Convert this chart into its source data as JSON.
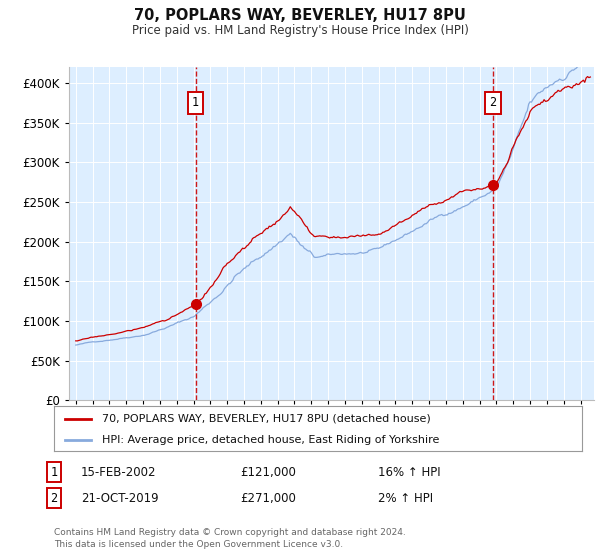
{
  "title": "70, POPLARS WAY, BEVERLEY, HU17 8PU",
  "subtitle": "Price paid vs. HM Land Registry's House Price Index (HPI)",
  "legend_line1": "70, POPLARS WAY, BEVERLEY, HU17 8PU (detached house)",
  "legend_line2": "HPI: Average price, detached house, East Riding of Yorkshire",
  "annotation1_date": "15-FEB-2002",
  "annotation1_price": "£121,000",
  "annotation1_hpi": "16% ↑ HPI",
  "annotation1_year": 2002.12,
  "annotation1_value": 121000,
  "annotation2_date": "21-OCT-2019",
  "annotation2_price": "£271,000",
  "annotation2_hpi": "2% ↑ HPI",
  "annotation2_year": 2019.8,
  "annotation2_value": 271000,
  "footer1": "Contains HM Land Registry data © Crown copyright and database right 2024.",
  "footer2": "This data is licensed under the Open Government Licence v3.0.",
  "bg_color": "#ddeeff",
  "grid_color": "#ffffff",
  "red_line_color": "#cc0000",
  "blue_line_color": "#88aadd",
  "box_color": "#cc0000",
  "marker_color": "#cc0000"
}
